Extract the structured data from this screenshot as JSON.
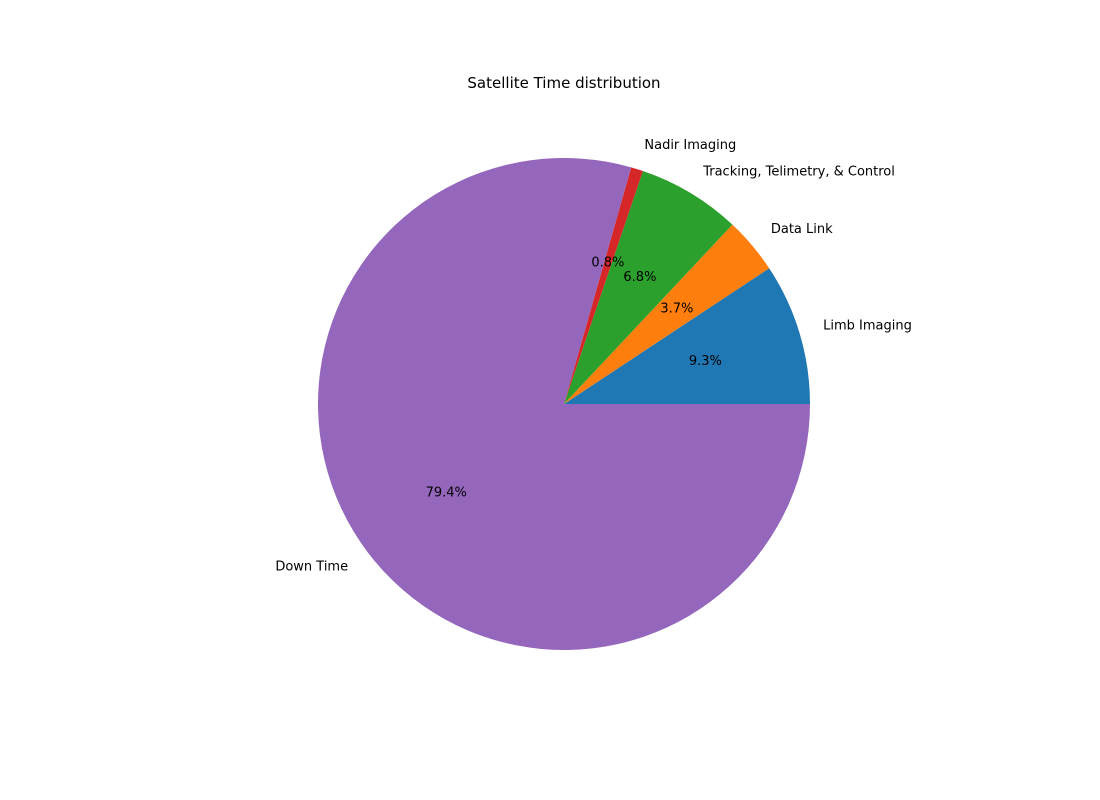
{
  "chart_data": {
    "type": "pie",
    "title": "Satellite Time distribution",
    "labels": [
      "Limb Imaging",
      "Data Link",
      "Tracking, Telimetry, & Control",
      "Nadir Imaging",
      "Down Time"
    ],
    "values": [
      9.3,
      3.7,
      6.8,
      0.8,
      79.4
    ],
    "pct_labels": [
      "9.3%",
      "3.7%",
      "6.8%",
      "0.8%",
      "79.4%"
    ],
    "colors": [
      "#1f77b4",
      "#ff7f0e",
      "#2ca02c",
      "#d62728",
      "#9467bd"
    ],
    "start_angle_deg": 0,
    "direction": "counterclockwise",
    "legend": "none"
  }
}
